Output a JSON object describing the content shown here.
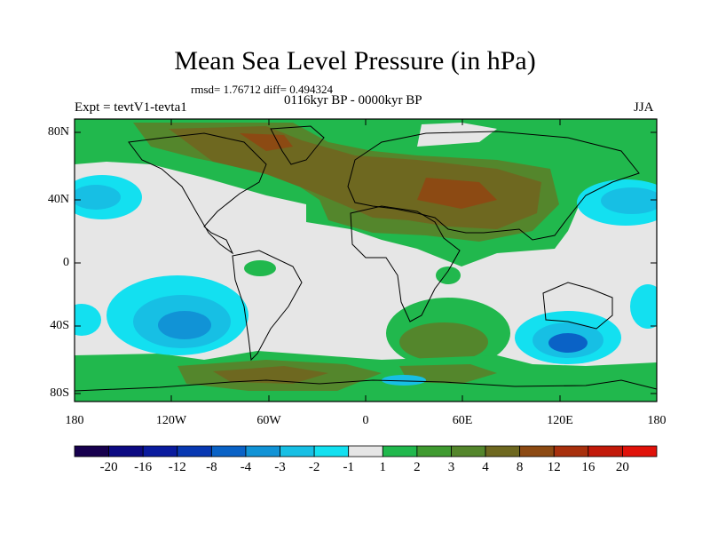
{
  "title": "Mean Sea Level Pressure (in hPa)",
  "stats": "rmsd= 1.76712 diff= 0.494324",
  "period": "0116kyr BP - 0000kyr BP",
  "experiment": "Expt = tevtV1-tevta1",
  "season": "JJA",
  "lat_labels": [
    "80N",
    "40N",
    "0",
    "40S",
    "80S"
  ],
  "lon_labels": [
    "180",
    "120W",
    "60W",
    "0",
    "60E",
    "120E",
    "180"
  ],
  "colorbar": {
    "labels": [
      "-20",
      "-16",
      "-12",
      "-8",
      "-4",
      "-3",
      "-2",
      "-1",
      "1",
      "2",
      "3",
      "4",
      "8",
      "12",
      "16",
      "20"
    ],
    "colors": [
      "#17004e",
      "#0c0a82",
      "#0a1b9e",
      "#0838b2",
      "#0a62c6",
      "#1193d6",
      "#17bfe4",
      "#13e0f0",
      "#e6e6e6",
      "#21b84d",
      "#3f9a30",
      "#54862c",
      "#6e6820",
      "#8c4a13",
      "#a8300d",
      "#c21a0a",
      "#e0120a"
    ]
  },
  "colors": {
    "neutral": "#e6e6e6",
    "coast": "#000000"
  }
}
